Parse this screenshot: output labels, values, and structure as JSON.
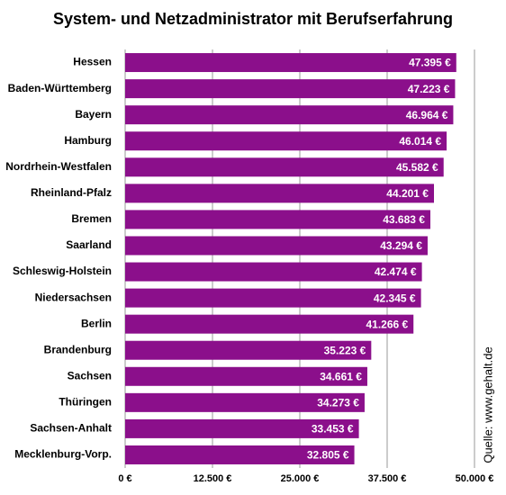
{
  "chart_data": {
    "type": "bar",
    "orientation": "horizontal",
    "title": "System- und Netzadministrator mit Berufserfahrung",
    "source": "Quelle: www.gehalt.de",
    "categories": [
      "Hessen",
      "Baden-Württemberg",
      "Bayern",
      "Hamburg",
      "Nordrhein-Westfalen",
      "Rheinland-Pfalz",
      "Bremen",
      "Saarland",
      "Schleswig-Holstein",
      "Niedersachsen",
      "Berlin",
      "Brandenburg",
      "Sachsen",
      "Thüringen",
      "Sachsen-Anhalt",
      "Mecklenburg-Vorp."
    ],
    "values": [
      47395,
      47223,
      46964,
      46014,
      45582,
      44201,
      43683,
      43294,
      42474,
      42345,
      41266,
      35223,
      34661,
      34273,
      33453,
      32805
    ],
    "value_labels": [
      "47.395 €",
      "47.223 €",
      "46.964 €",
      "46.014 €",
      "45.582 €",
      "44.201 €",
      "43.683 €",
      "43.294 €",
      "42.474 €",
      "42.345 €",
      "41.266 €",
      "35.223 €",
      "34.661 €",
      "34.273 €",
      "33.453 €",
      "32.805 €"
    ],
    "color": "#8b0f8b",
    "xlim": [
      0,
      50000
    ],
    "xticks": [
      {
        "value": 0,
        "label": "0 €"
      },
      {
        "value": 12500,
        "label": "12.500 €"
      },
      {
        "value": 25000,
        "label": "25.000 €"
      },
      {
        "value": 37500,
        "label": "37.500 €"
      },
      {
        "value": 50000,
        "label": "50.000 €"
      }
    ],
    "grid": true
  }
}
